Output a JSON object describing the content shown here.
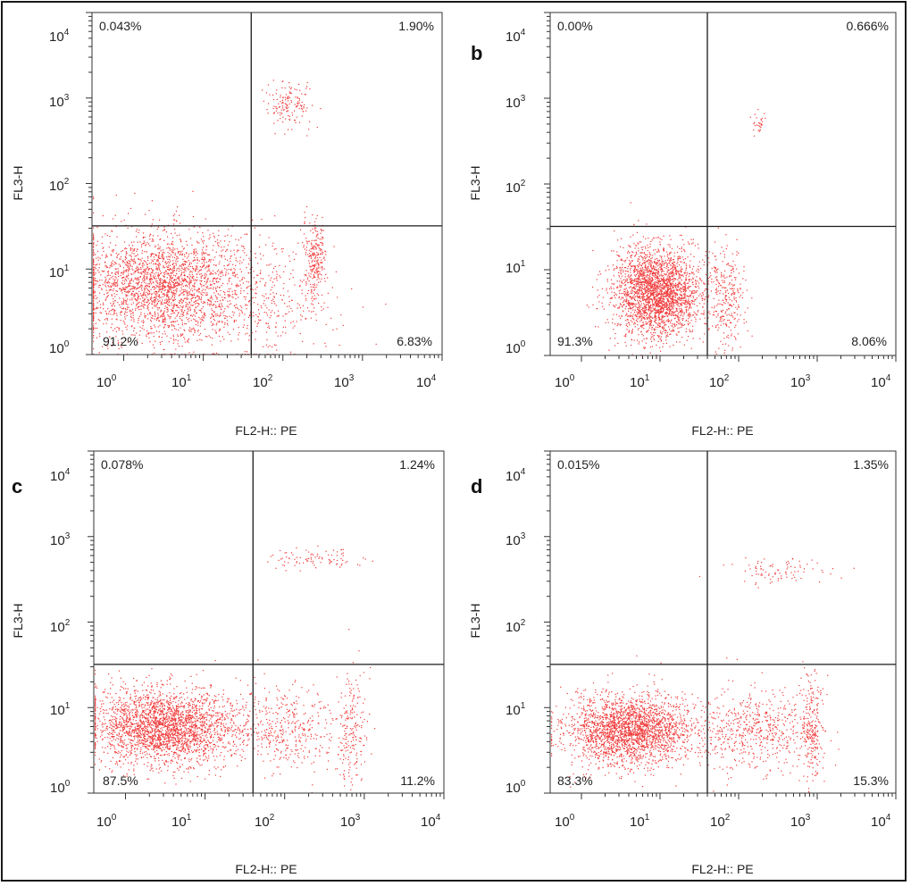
{
  "colors": {
    "dot": "#f03a3a",
    "axis": "#333333",
    "gate": "#1a1a1a"
  },
  "shared": {
    "xlabel": "FL2-H:: PE",
    "ylabel": "FL3-H",
    "tick_base": "10",
    "tick_exponents": [
      "0",
      "1",
      "2",
      "3",
      "4"
    ]
  },
  "chart_data": [
    {
      "type": "scatter",
      "panel": "a",
      "letter": "",
      "x_scale": "log",
      "y_scale": "log",
      "xlim": [
        0.4,
        10000
      ],
      "ylim": [
        1,
        10000
      ],
      "gate": {
        "x": 40,
        "y": 32
      },
      "quadrants": {
        "upper_left": "0.043%",
        "upper_right": "1.90%",
        "lower_left": "91.2%",
        "lower_right": "6.83%"
      },
      "populations": [
        {
          "x_center": 3.0,
          "y_center": 6.5,
          "x_spread_decades": 0.55,
          "y_spread_decades": 0.32,
          "count": 2600
        },
        {
          "x_center": 250,
          "y_center": 12,
          "x_spread_decades": 0.07,
          "y_spread_decades": 0.28,
          "count": 260
        },
        {
          "x_center": 120,
          "y_center": 850,
          "x_spread_decades": 0.15,
          "y_spread_decades": 0.14,
          "count": 150
        },
        {
          "x_center": 60,
          "y_center": 5,
          "x_spread_decades": 0.45,
          "y_spread_decades": 0.4,
          "count": 320
        }
      ]
    },
    {
      "type": "scatter",
      "panel": "b",
      "letter": "b",
      "x_scale": "log",
      "y_scale": "log",
      "xlim": [
        0.4,
        10000
      ],
      "ylim": [
        1,
        10000
      ],
      "gate": {
        "x": 40,
        "y": 32
      },
      "quadrants": {
        "upper_left": "0.00%",
        "upper_right": "0.666%",
        "lower_left": "91.3%",
        "lower_right": "8.06%"
      },
      "populations": [
        {
          "x_center": 9,
          "y_center": 5.5,
          "x_spread_decades": 0.28,
          "y_spread_decades": 0.26,
          "count": 2600
        },
        {
          "x_center": 70,
          "y_center": 5,
          "x_spread_decades": 0.12,
          "y_spread_decades": 0.3,
          "count": 280
        },
        {
          "x_center": 180,
          "y_center": 500,
          "x_spread_decades": 0.05,
          "y_spread_decades": 0.07,
          "count": 30
        }
      ]
    },
    {
      "type": "scatter",
      "panel": "c",
      "letter": "c",
      "x_scale": "log",
      "y_scale": "log",
      "xlim": [
        0.4,
        10000
      ],
      "ylim": [
        1,
        10000
      ],
      "gate": {
        "x": 40,
        "y": 32
      },
      "quadrants": {
        "upper_left": "0.078%",
        "upper_right": "1.24%",
        "lower_left": "87.5%",
        "lower_right": "11.2%"
      },
      "populations": [
        {
          "x_center": 3.2,
          "y_center": 6.0,
          "x_spread_decades": 0.45,
          "y_spread_decades": 0.22,
          "count": 2600
        },
        {
          "x_center": 90,
          "y_center": 5.5,
          "x_spread_decades": 0.35,
          "y_spread_decades": 0.25,
          "count": 420
        },
        {
          "x_center": 700,
          "y_center": 6,
          "x_spread_decades": 0.09,
          "y_spread_decades": 0.3,
          "count": 200
        },
        {
          "x_center": 250,
          "y_center": 550,
          "x_spread_decades": 0.3,
          "y_spread_decades": 0.06,
          "count": 90
        }
      ]
    },
    {
      "type": "scatter",
      "panel": "d",
      "letter": "d",
      "x_scale": "log",
      "y_scale": "log",
      "xlim": [
        0.4,
        10000
      ],
      "ylim": [
        1,
        10000
      ],
      "gate": {
        "x": 40,
        "y": 32
      },
      "quadrants": {
        "upper_left": "0.015%",
        "upper_right": "1.35%",
        "lower_left": "83.3%",
        "lower_right": "15.3%"
      },
      "populations": [
        {
          "x_center": 4,
          "y_center": 5.5,
          "x_spread_decades": 0.4,
          "y_spread_decades": 0.2,
          "count": 2400
        },
        {
          "x_center": 150,
          "y_center": 5.5,
          "x_spread_decades": 0.4,
          "y_spread_decades": 0.25,
          "count": 600
        },
        {
          "x_center": 850,
          "y_center": 6,
          "x_spread_decades": 0.07,
          "y_spread_decades": 0.3,
          "count": 230
        },
        {
          "x_center": 300,
          "y_center": 430,
          "x_spread_decades": 0.28,
          "y_spread_decades": 0.08,
          "count": 90
        }
      ]
    }
  ]
}
